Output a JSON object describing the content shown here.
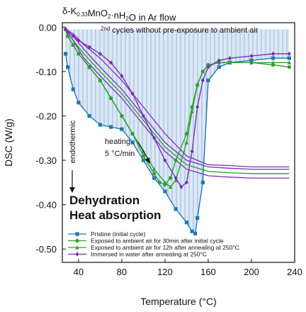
{
  "title": "δ-K0.33MnO2·nH2O in Ar flow",
  "chart_data": {
    "type": "line",
    "title": "δ-K0.33MnO2·nH2O in Ar flow",
    "xlabel": "Temperature (°C)",
    "ylabel": "DSC (W/g)",
    "xlim": [
      25,
      240
    ],
    "ylim": [
      -0.53,
      0.01
    ],
    "xticks": [
      40,
      80,
      120,
      160,
      200,
      240
    ],
    "yticks": [
      0.0,
      -0.1,
      -0.2,
      -0.3,
      -0.4,
      -0.5
    ],
    "ytick_labels": [
      "0.00",
      "-0.10",
      "-0.20",
      "-0.30",
      "-0.40",
      "-0.50"
    ],
    "legend_position": "bottom-left",
    "annotations": {
      "top_note_sup": "2nd",
      "top_note": " cycles without pre-exposure to ambient air",
      "endothermic": "endothermic",
      "heating": "heating",
      "rate": "5 °C/min",
      "dehydration": "Dehydration",
      "heat_absorption": "Heat absorption"
    },
    "series": [
      {
        "name": "Pristine (initial cycle)",
        "color": "#1f78b4",
        "marker": "square",
        "x": [
          28,
          30,
          35,
          40,
          50,
          60,
          70,
          80,
          90,
          100,
          110,
          120,
          130,
          140,
          145,
          148,
          150,
          155,
          160,
          170,
          180,
          200,
          220,
          235
        ],
        "y": [
          -0.06,
          -0.09,
          -0.14,
          -0.17,
          -0.2,
          -0.22,
          -0.225,
          -0.23,
          -0.26,
          -0.3,
          -0.34,
          -0.37,
          -0.41,
          -0.44,
          -0.46,
          -0.465,
          -0.43,
          -0.35,
          -0.12,
          -0.09,
          -0.08,
          -0.075,
          -0.07,
          -0.07
        ]
      },
      {
        "name": "Exposed to ambient air for 30min after initial cycle",
        "color": "#2ca02c",
        "marker": "circle",
        "x": [
          28,
          30,
          35,
          40,
          50,
          60,
          70,
          80,
          90,
          100,
          110,
          115,
          120,
          125,
          130,
          140,
          145,
          150,
          155,
          160,
          170,
          180,
          200,
          220,
          235
        ],
        "y": [
          -0.005,
          -0.02,
          -0.04,
          -0.06,
          -0.09,
          -0.12,
          -0.16,
          -0.2,
          -0.24,
          -0.29,
          -0.33,
          -0.35,
          -0.355,
          -0.34,
          -0.3,
          -0.24,
          -0.18,
          -0.13,
          -0.1,
          -0.085,
          -0.08,
          -0.08,
          -0.08,
          -0.085,
          -0.09
        ]
      },
      {
        "name": "Exposed to ambient air for 12h after annealing at 250°C",
        "color": "#2ca02c",
        "marker": "triangle",
        "x": [
          28,
          30,
          35,
          40,
          50,
          60,
          70,
          80,
          90,
          100,
          110,
          120,
          125,
          130,
          140,
          145,
          150,
          155,
          160,
          170,
          180,
          200,
          220,
          235
        ],
        "y": [
          -0.005,
          -0.02,
          -0.04,
          -0.06,
          -0.09,
          -0.12,
          -0.16,
          -0.2,
          -0.24,
          -0.28,
          -0.32,
          -0.35,
          -0.36,
          -0.345,
          -0.26,
          -0.19,
          -0.13,
          -0.1,
          -0.085,
          -0.08,
          -0.08,
          -0.08,
          -0.08,
          -0.08
        ]
      },
      {
        "name": "Immersed in water after annealing at 250°C",
        "color": "#7b2fb5",
        "marker": "diamond",
        "x": [
          28,
          30,
          35,
          40,
          50,
          60,
          70,
          80,
          90,
          100,
          110,
          120,
          130,
          135,
          140,
          145,
          150,
          155,
          160,
          170,
          180,
          200,
          220,
          235
        ],
        "y": [
          -0.005,
          -0.01,
          -0.02,
          -0.03,
          -0.045,
          -0.06,
          -0.08,
          -0.11,
          -0.15,
          -0.2,
          -0.25,
          -0.3,
          -0.34,
          -0.36,
          -0.35,
          -0.28,
          -0.18,
          -0.12,
          -0.09,
          -0.075,
          -0.07,
          -0.065,
          -0.06,
          -0.06
        ]
      }
    ],
    "second_cycle_curves": [
      {
        "color": "#2ca02c",
        "x": [
          28,
          35,
          45,
          60,
          80,
          100,
          120,
          140,
          160,
          180,
          200,
          220,
          235
        ],
        "y": [
          -0.005,
          -0.03,
          -0.06,
          -0.1,
          -0.15,
          -0.21,
          -0.27,
          -0.31,
          -0.325,
          -0.328,
          -0.33,
          -0.33,
          -0.33
        ]
      },
      {
        "color": "#7b2fb5",
        "x": [
          28,
          35,
          45,
          60,
          80,
          100,
          120,
          140,
          160,
          180,
          200,
          220,
          235
        ],
        "y": [
          -0.005,
          -0.03,
          -0.07,
          -0.11,
          -0.16,
          -0.22,
          -0.28,
          -0.32,
          -0.335,
          -0.338,
          -0.34,
          -0.34,
          -0.34
        ]
      },
      {
        "color": "#7b2fb5",
        "x": [
          28,
          35,
          45,
          60,
          80,
          100,
          120,
          140,
          160,
          180,
          200,
          220,
          235
        ],
        "y": [
          -0.005,
          -0.02,
          -0.05,
          -0.09,
          -0.14,
          -0.2,
          -0.26,
          -0.3,
          -0.315,
          -0.318,
          -0.32,
          -0.32,
          -0.32
        ]
      },
      {
        "color": "#7b2fb5",
        "x": [
          28,
          35,
          45,
          60,
          80,
          100,
          120,
          140,
          160,
          180,
          200,
          220,
          235
        ],
        "y": [
          -0.005,
          -0.015,
          -0.04,
          -0.07,
          -0.12,
          -0.18,
          -0.24,
          -0.29,
          -0.31,
          -0.312,
          -0.315,
          -0.315,
          -0.315
        ]
      }
    ]
  }
}
